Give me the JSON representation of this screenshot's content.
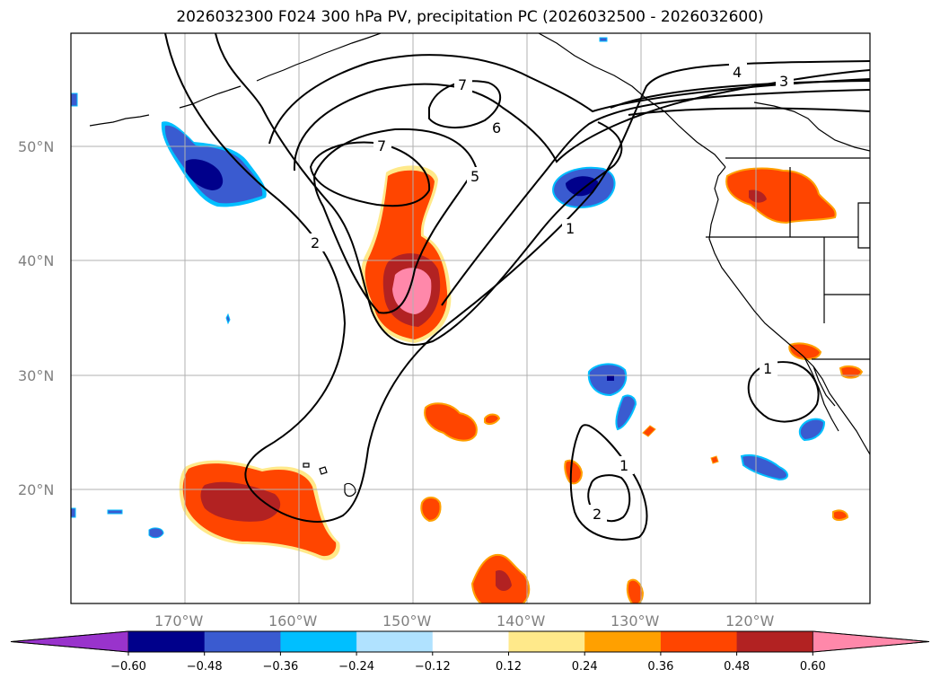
{
  "title": "2026032300 F024 300 hPa PV, precipitation PC (2026032500 - 2026032600)",
  "axes": {
    "lon_labels": [
      "170°W",
      "160°W",
      "150°W",
      "140°W",
      "130°W",
      "120°W"
    ],
    "lat_labels": [
      "50°N",
      "40°N",
      "30°N",
      "20°N"
    ]
  },
  "contour_labels": [
    "7",
    "7",
    "6",
    "5",
    "4",
    "3",
    "2",
    "1",
    "1",
    "1",
    "2"
  ],
  "colorbar": {
    "ticks": [
      "−0.60",
      "−0.48",
      "−0.36",
      "−0.24",
      "−0.12",
      "0.12",
      "0.24",
      "0.36",
      "0.48",
      "0.60"
    ],
    "colors": [
      "#9933cc",
      "#00008b",
      "#3a5bd0",
      "#00bfff",
      "#b0e2ff",
      "#ffffff",
      "#ffe98a",
      "#ffa000",
      "#ff4500",
      "#b22222",
      "#ff88aa"
    ]
  },
  "colors": {
    "frame": "#000000",
    "grid": "#b0b0b0",
    "contour": "#000000",
    "coast": "#000000"
  }
}
